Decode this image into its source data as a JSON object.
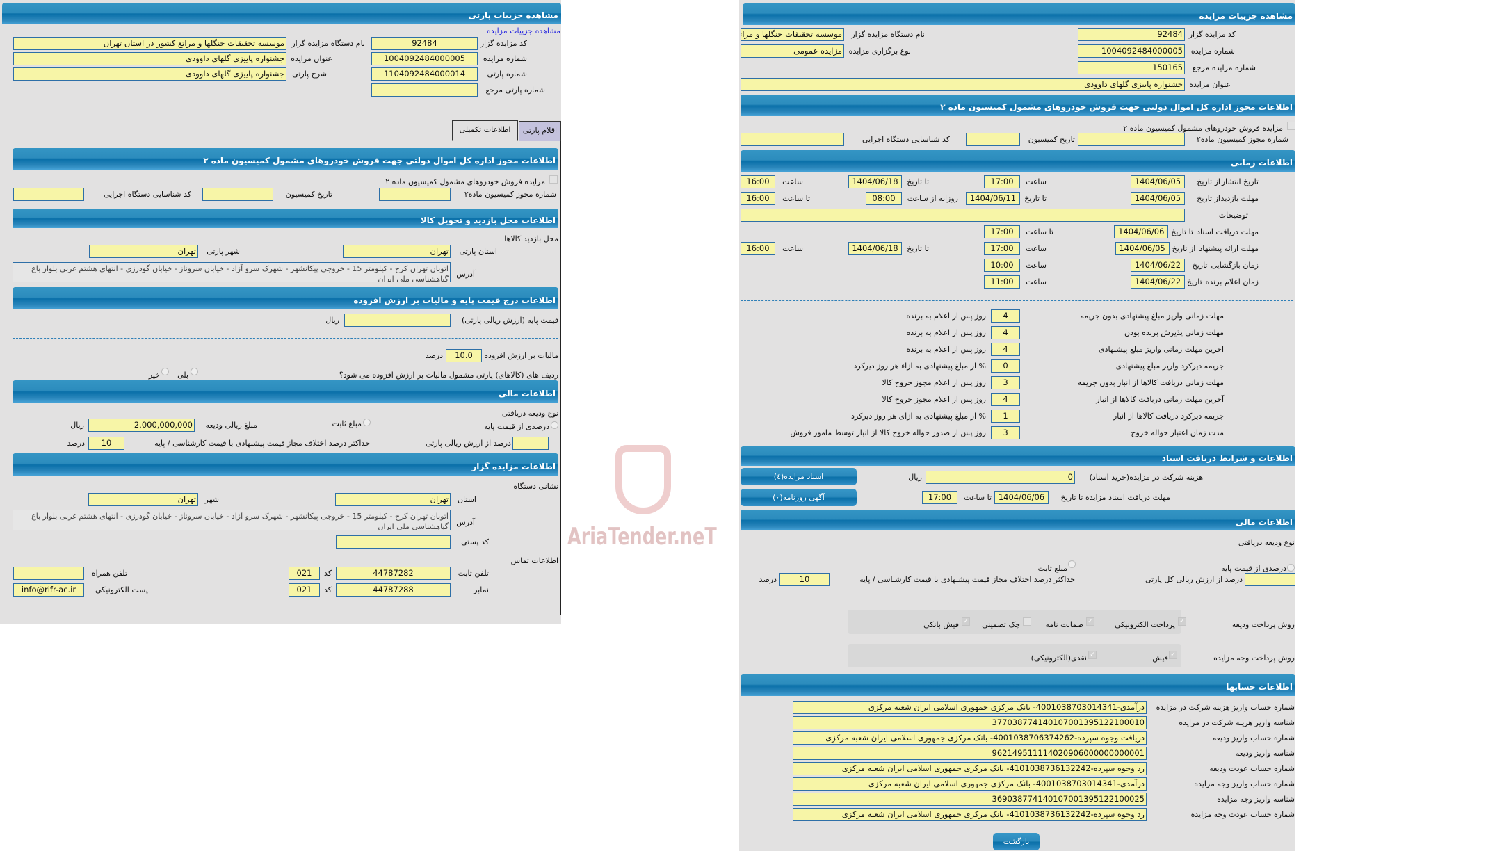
{
  "left": {
    "title": "مشاهده جزییات پارتی",
    "link": "مشاهده جزییات مزایده",
    "auctioneer_code_label": "کد مزایده گزار",
    "auctioneer_code": "92484",
    "auction_no_label": "شماره مزایده",
    "auction_no": "1004092484000005",
    "party_no_label": "شماره پارتی",
    "party_no": "1104092484000014",
    "ref_party_no_label": "شماره پارتی مرجع",
    "ref_party_no": "",
    "org_name_label": "نام دستگاه مزایده گزار",
    "org_name": "موسسه تحقیقات جنگلها و مراتع کشور در استان تهران",
    "auction_title_label": "عنوان مزایده",
    "auction_title": "جشنواره پاییزی گلهای داوودی",
    "party_desc_label": "شرح پارتی",
    "party_desc": "جشنواره پاییزی گلهای داوودی",
    "tabs": [
      "اقلام پارتی",
      "اطلاعات تکمیلی"
    ],
    "permit": {
      "header": "اطلاعات مجوز اداره کل اموال دولتی جهت فروش خودروهای مشمول کمیسیون ماده ۲",
      "checkbox_label": "مزایده فروش خودروهای مشمول کمیسیون ماده ۲",
      "permit_no_label": "شماره مجوز کمیسیون ماده۲",
      "permit_no": "",
      "commission_date_label": "تاریخ کمیسیون",
      "commission_date": "",
      "exec_id_label": "کد شناسایی دستگاه اجرایی",
      "exec_id": ""
    },
    "visit": {
      "header": "اطلاعات محل بازدید و تحویل کالا",
      "subtitle": "محل بازدید کالاها",
      "province_label": "استان پارتی",
      "province": "تهران",
      "city_label": "شهر پارتی",
      "city": "تهران",
      "address_label": "آدرس",
      "address": "اتوبان تهران کرج - کیلومتر 15 - خروجی پیکانشهر - شهرک سرو آزاد - خیابان سروناز - خیابان گودرزی - انتهای هشتم غربی بلوار باغ گیاهشناسی ملی ایران"
    },
    "price": {
      "header": "اطلاعات درج قیمت پایه و مالیات بر ارزش افزوده",
      "base_label": "قیمت پایه (ارزش ریالی پارتی)",
      "base": "",
      "unit": "ریال",
      "vat_label": "مالیات بر ارزش افزوده",
      "vat": "10.0",
      "vat_unit": "درصد",
      "vat_question": "ردیف های (کالاهای) پارتی مشمول مالیات بر ارزش افزوده می شود؟",
      "yes": "بلی",
      "no": "خیر"
    },
    "finance": {
      "header": "اطلاعات مالی",
      "deposit_type_label": "نوع ودیعه دریافتی",
      "opt_percent": "درصدی از قیمت پایه",
      "opt_fixed": "مبلغ ثابت",
      "deposit_amount_label": "مبلغ ریالی ودیعه",
      "deposit_amount": "2,000,000,000",
      "unit": "ریال",
      "percent_label": "درصد از ارزش ریالی پارتی",
      "percent": "",
      "max_diff_label": "حداکثر درصد اختلاف مجاز قیمت پیشنهادی با قیمت کارشناسی / پایه",
      "max_diff": "10",
      "max_diff_unit": "درصد"
    },
    "auctioneer": {
      "header": "اطلاعات مزایده گزار",
      "address_title": "نشانی دستگاه",
      "province_label": "استان",
      "province": "تهران",
      "city_label": "شهر",
      "city": "تهران",
      "address_label": "آدرس",
      "address": "اتوبان تهران کرج - کیلومتر 15 - خروجی پیکانشهر - شهرک سرو آزاد - خیابان سروناز - خیابان گودرزی - انتهای هشتم غربی بلوار باغ گیاهشناسی ملی ایران",
      "postal_label": "کد پستی",
      "postal": "",
      "contact_title": "اطلاعات تماس",
      "phone_label": "تلفن ثابت",
      "phone": "44787282",
      "code_label": "کد",
      "phone_code": "021",
      "mobile_label": "تلفن همراه",
      "mobile": "",
      "fax_label": "نمابر",
      "fax": "44787288",
      "fax_code": "021",
      "email_label": "پست الکترونیکی",
      "email": "info@rifr-ac.ir"
    }
  },
  "right": {
    "title": "مشاهده جزییات مزایده",
    "code_label": "کد مزایده گزار",
    "code": "92484",
    "org_label": "نام دستگاه مزایده گزار",
    "org": "موسسه تحقیقات جنگلها و مراتع کشور در استان تهران",
    "no_label": "شماره مزایده",
    "no": "1004092484000005",
    "type_label": "نوع برگزاری مزایده",
    "type": "مزایده عمومی",
    "ref_label": "شماره مزایده مرجع",
    "ref": "150165",
    "title_label": "عنوان مزایده",
    "title_value": "جشنواره پاییزی گلهای داوودی",
    "permit": {
      "header": "اطلاعات مجوز اداره کل اموال دولتی جهت فروش خودروهای مشمول کمیسیون ماده ۲",
      "checkbox_label": "مزایده فروش خودروهای مشمول کمیسیون ماده ۲",
      "permit_no_label": "شماره مجوز کمیسیون ماده۲",
      "commission_date_label": "تاریخ کمیسیون",
      "exec_id_label": "کد شناسایی دستگاه اجرایی"
    },
    "time": {
      "header": "اطلاعات زمانی",
      "from_date": "از تاریخ",
      "to_date": "تا تاریخ",
      "date": "تاریخ",
      "hour": "ساعت",
      "to_hour": "تا ساعت",
      "daily_from": "روزانه از ساعت",
      "publish_label": "تاریخ انتشار",
      "publish_from": "1404/06/05",
      "publish_from_time": "17:00",
      "publish_to": "1404/06/18",
      "publish_to_time": "16:00",
      "visit_label": "مهلت بازدید",
      "visit_from": "1404/06/05",
      "visit_to": "1404/06/11",
      "visit_daily_from": "08:00",
      "visit_daily_to": "16:00",
      "notes_label": "توضیحات",
      "notes": "",
      "docs_label": "مهلت دریافت اسناد",
      "docs_to": "1404/06/06",
      "docs_to_time": "17:00",
      "offer_label": "مهلت ارائه پیشنهاد",
      "offer_from": "1404/06/05",
      "offer_from_time": "17:00",
      "offer_to": "1404/06/18",
      "offer_to_time": "16:00",
      "opening_label": "زمان بازگشایی",
      "opening_date": "1404/06/22",
      "opening_time": "10:00",
      "winner_label": "زمان اعلام برنده",
      "winner_date": "1404/06/22",
      "winner_time": "11:00"
    },
    "rules": [
      {
        "label": "مهلت زمانی واریز مبلغ پیشنهادی بدون جریمه",
        "value": "4",
        "suffix": "روز پس از اعلام به برنده"
      },
      {
        "label": "مهلت زمانی پذیرش برنده بودن",
        "value": "4",
        "suffix": "روز پس از اعلام به برنده"
      },
      {
        "label": "اخرین مهلت زمانی واریز مبلغ پیشنهادی",
        "value": "4",
        "suffix": "روز پس از اعلام به برنده"
      },
      {
        "label": "جریمه دیرکرد واریز مبلغ پیشنهادی",
        "value": "0",
        "suffix": "% از مبلغ پیشنهادی به ازاء هر روز دیرکرد"
      },
      {
        "label": "مهلت زمانی دریافت کالاها از انبار بدون جریمه",
        "value": "3",
        "suffix": "روز پس از اعلام مجوز خروج کالا"
      },
      {
        "label": "آخرین مهلت زمانی دریافت کالاها از انبار",
        "value": "4",
        "suffix": "روز پس از اعلام مجوز خروج کالا"
      },
      {
        "label": "جریمه دیرکرد دریافت کالاها از انبار",
        "value": "1",
        "suffix": "% از مبلغ پیشنهادی به ازای هر روز دیرکرد"
      },
      {
        "label": "مدت زمان اعتبار حواله خروج",
        "value": "3",
        "suffix": "روز پس از صدور حواله خروج کالا از انبار توسط مامور فروش"
      }
    ],
    "docs": {
      "header": "اطلاعات و شرایط دریافت اسناد",
      "cost_label": "هزینه شرکت در مزایده(خرید اسناد)",
      "cost": "0",
      "unit": "ریال",
      "deadline_label": "مهلت دریافت اسناد مزایده تا تاریخ",
      "deadline_date": "1404/06/06",
      "time_label": "تا ساعت",
      "deadline_time": "17:00",
      "docs_button": "اسناد مزایده(٤)",
      "ads_button": "آگهی روزنامه(٠)"
    },
    "finance": {
      "header": "اطلاعات مالی",
      "deposit_type_label": "نوع ودیعه دریافتی",
      "opt_percent": "درصدی از قیمت پایه",
      "opt_fixed": "مبلغ ثابت",
      "percent_label": "درصد از ارزش ریالی کل پارتی",
      "percent": "",
      "max_diff_label": "حداکثر درصد اختلاف مجاز قیمت پیشنهادی با قیمت کارشناسی / پایه",
      "max_diff": "10",
      "max_diff_unit": "درصد",
      "deposit_method_label": "روش پرداخت ودیعه",
      "deposit_methods": [
        {
          "label": "پرداخت الکترونیکی",
          "checked": true
        },
        {
          "label": "ضمانت نامه",
          "checked": true
        },
        {
          "label": "چک تضمینی",
          "checked": false
        },
        {
          "label": "فیش بانکی",
          "checked": true
        }
      ],
      "payment_method_label": "روش پرداخت وجه مزایده",
      "payment_methods": [
        {
          "label": "فیش",
          "checked": true
        },
        {
          "label": "نقدی(الکترونیکی)",
          "checked": true
        }
      ]
    },
    "accounts": {
      "header": "اطلاعات حسابها",
      "rows": [
        {
          "label": "شماره حساب واریز هزینه شرکت در مزایده",
          "value": "درآمدی-4001038703014341- بانک مرکزی جمهوری اسلامی ایران شعبه مرکزی"
        },
        {
          "label": "شناسه واریز هزینه شرکت در مزایده",
          "value": "377038774140107001395122100010"
        },
        {
          "label": "شماره حساب واریز ودیعه",
          "value": "دریافت وجوه سپرده-4001038706374262- بانک مرکزی جمهوری اسلامی ایران شعبه مرکزی"
        },
        {
          "label": "شناسه واریز ودیعه",
          "value": "962149511114020906000000000001"
        },
        {
          "label": "شماره حساب عودت ودیعه",
          "value": "رد وجوه سپرده-4101038736132242- بانک مرکزی جمهوری اسلامی ایران شعبه مرکزی"
        },
        {
          "label": "شماره حساب واریز وجه مزایده",
          "value": "درآمدی-4001038703014341- بانک مرکزی جمهوری اسلامی ایران شعبه مرکزی"
        },
        {
          "label": "شناسه واریز وجه مزایده",
          "value": "369038774140107001395122100025"
        },
        {
          "label": "شماره حساب عودت وجه مزایده",
          "value": "رد وجوه سپرده-4101038736132242- بانک مرکزی جمهوری اسلامی ایران شعبه مرکزی"
        }
      ]
    },
    "back_button": "بازگشت"
  },
  "watermark": "AriaTender.neT",
  "colors": {
    "header_blue": "#0a70a9",
    "field_yellow": "#f7f5a7",
    "panel_gray": "#e2e1e1",
    "link_blue": "#2525e0"
  }
}
